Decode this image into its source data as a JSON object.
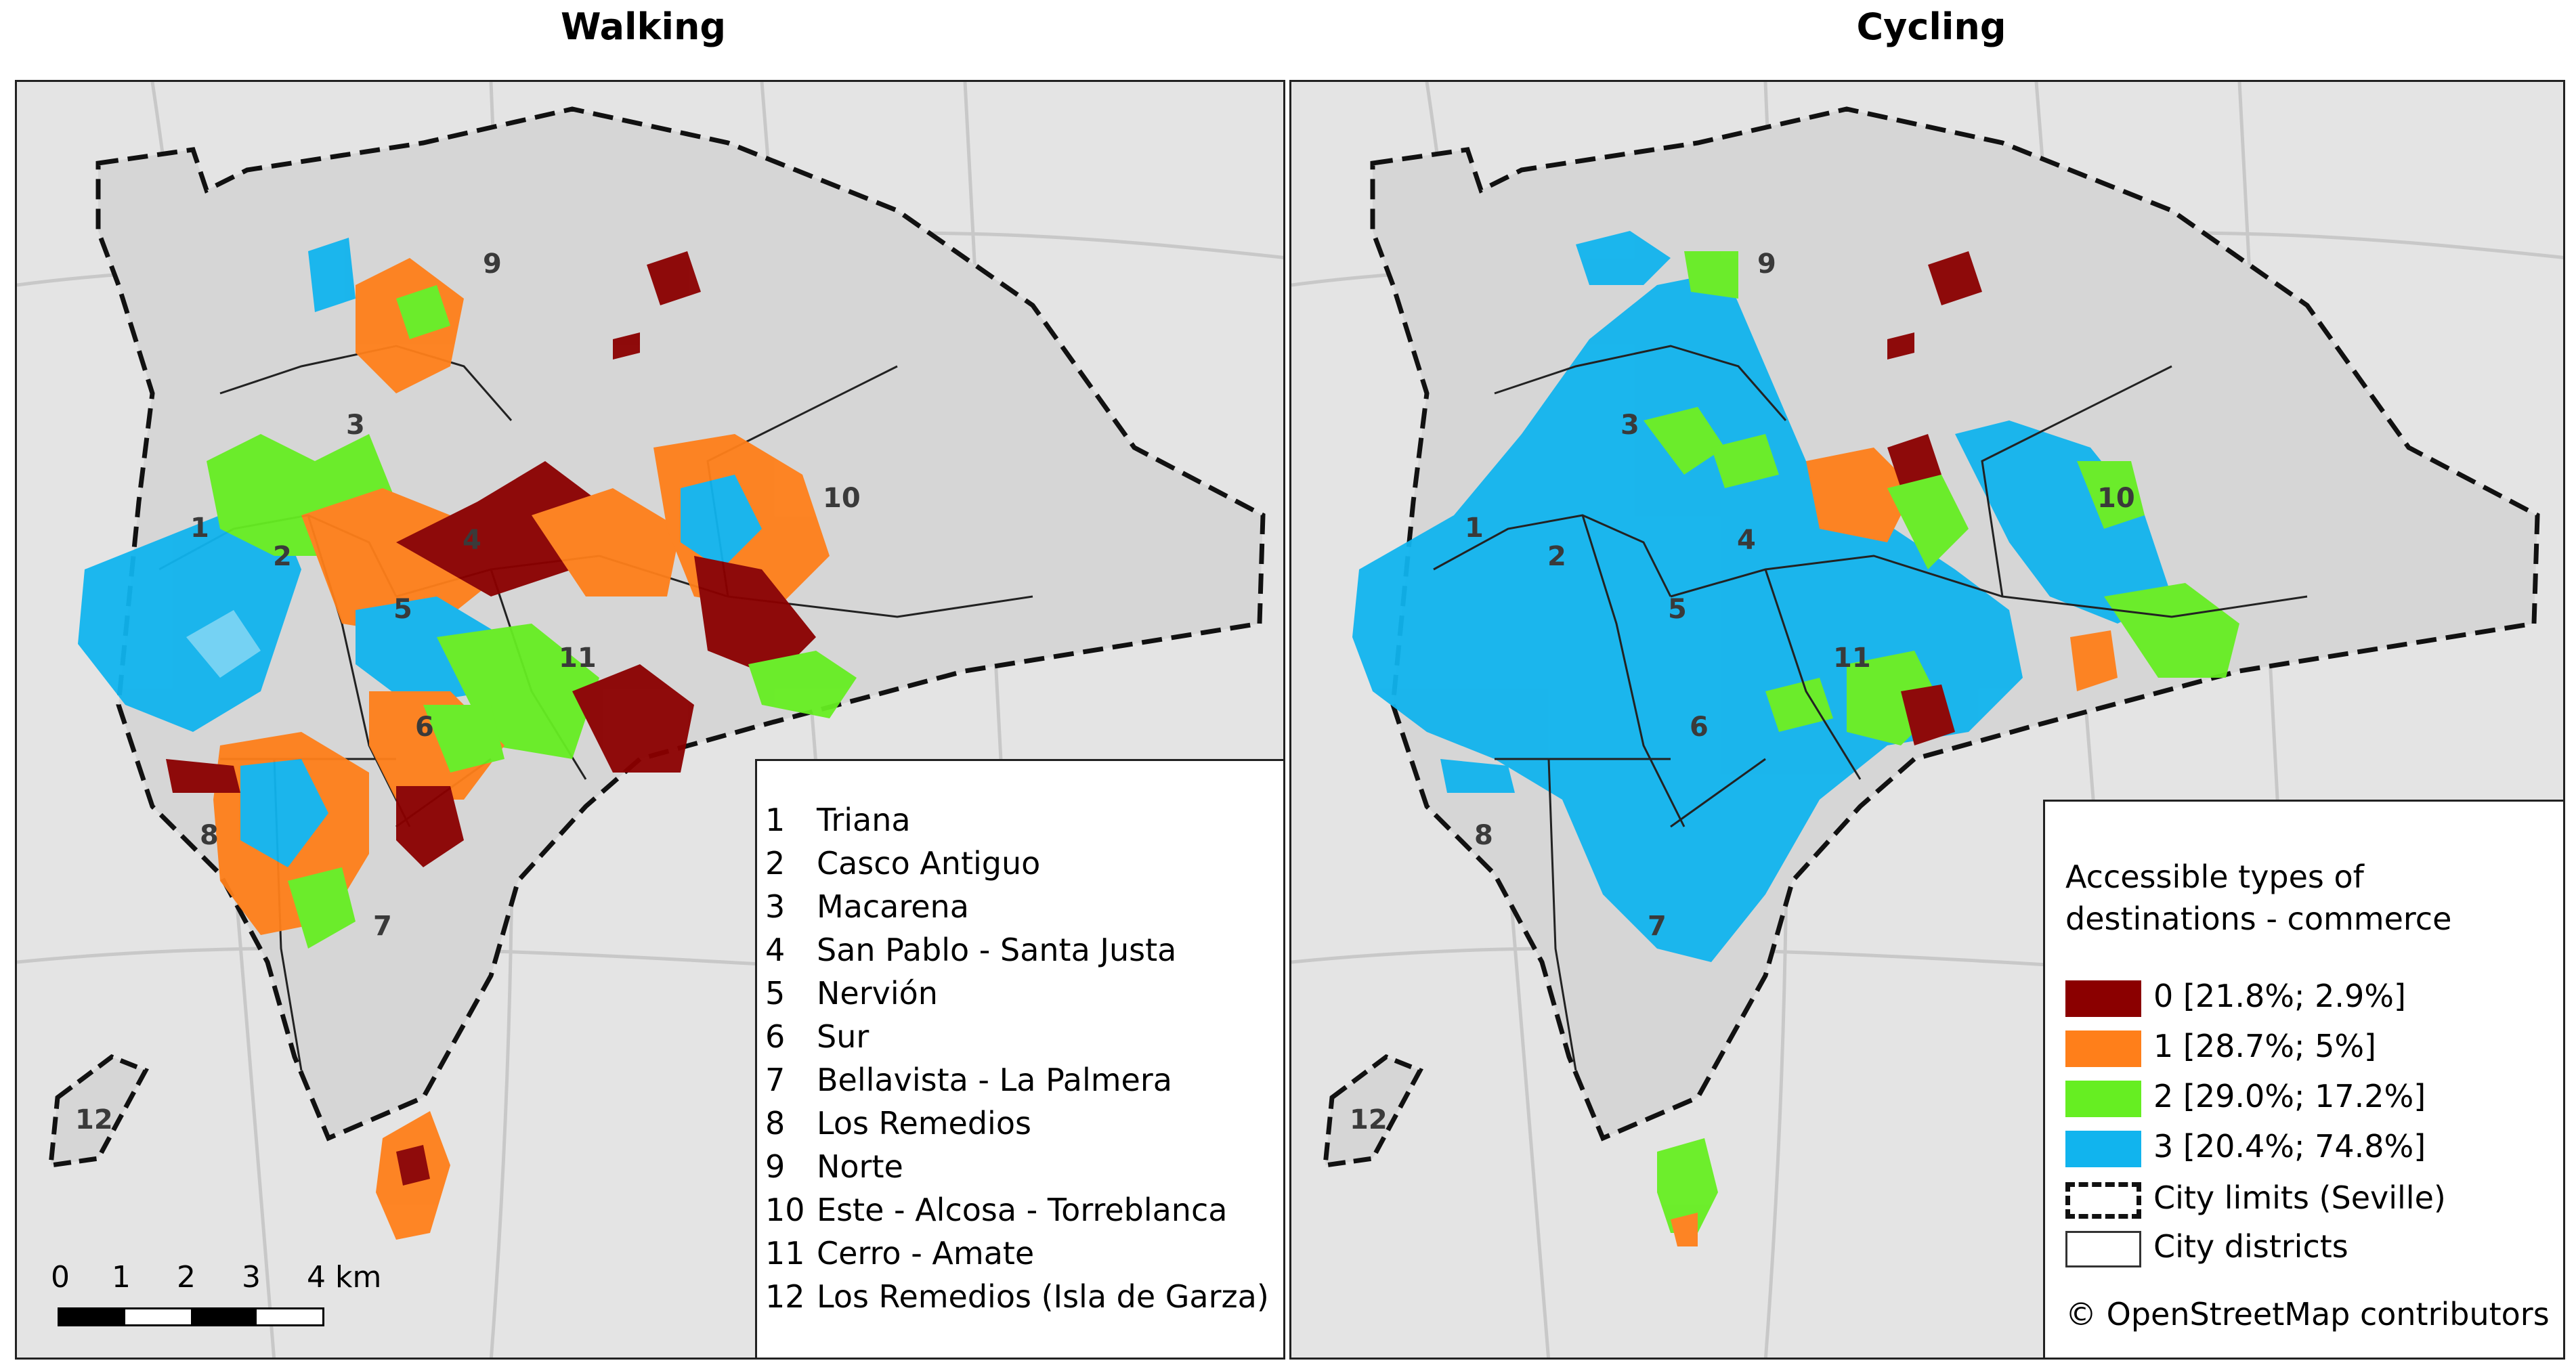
{
  "panels": {
    "walking_title": "Walking",
    "cycling_title": "Cycling"
  },
  "district_numbers": [
    "1",
    "2",
    "3",
    "4",
    "5",
    "6",
    "7",
    "8",
    "9",
    "10",
    "11",
    "12"
  ],
  "districts_legend": [
    {
      "num": "1",
      "name": "Triana"
    },
    {
      "num": "2",
      "name": "Casco Antiguo"
    },
    {
      "num": "3",
      "name": "Macarena"
    },
    {
      "num": "4",
      "name": "San Pablo - Santa Justa"
    },
    {
      "num": "5",
      "name": "Nervión"
    },
    {
      "num": "6",
      "name": "Sur"
    },
    {
      "num": "7",
      "name": "Bellavista - La Palmera"
    },
    {
      "num": "8",
      "name": "Los Remedios"
    },
    {
      "num": "9",
      "name": "Norte"
    },
    {
      "num": "10",
      "name": "Este - Alcosa - Torreblanca"
    },
    {
      "num": "11",
      "name": "Cerro - Amate"
    },
    {
      "num": "12",
      "name": "Los Remedios (Isla de Garza)"
    }
  ],
  "scale": {
    "ticks": [
      "0",
      "1",
      "2",
      "3",
      "4 km"
    ]
  },
  "legend": {
    "title_line1": "Accessible types of",
    "title_line2": "destinations - commerce",
    "classes": [
      {
        "label": "0 [21.8%; 2.9%]",
        "color": "#8b0000"
      },
      {
        "label": "1 [28.7%; 5%]",
        "color": "#ff7f1a"
      },
      {
        "label": "2 [29.0%; 17.2%]",
        "color": "#66ee22"
      },
      {
        "label": "3 [20.4%; 74.8%]",
        "color": "#11b4ee"
      }
    ],
    "city_limits": "City limits (Seville)",
    "city_districts": "City districts",
    "attribution": "© OpenStreetMap contributors"
  }
}
